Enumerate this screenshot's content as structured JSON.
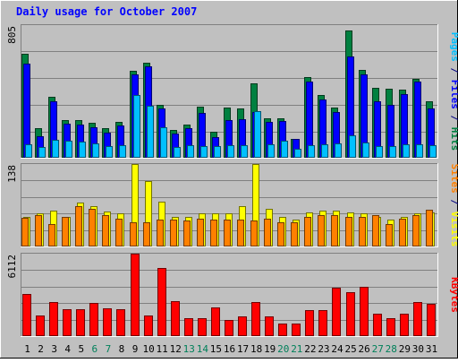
{
  "chart_data": {
    "type": "bar",
    "title": "Daily usage for October 2007",
    "categories": [
      "1",
      "2",
      "3",
      "4",
      "5",
      "6",
      "7",
      "8",
      "9",
      "10",
      "11",
      "12",
      "13",
      "14",
      "15",
      "16",
      "17",
      "18",
      "19",
      "20",
      "21",
      "22",
      "23",
      "24",
      "25",
      "26",
      "27",
      "28",
      "29",
      "30",
      "31"
    ],
    "weekend_days": [
      "6",
      "7",
      "13",
      "14",
      "20",
      "21",
      "27",
      "28"
    ],
    "panels": [
      {
        "id": "hits-files-pages",
        "max_label": "805",
        "ylim": [
          0,
          805
        ],
        "axis_label_parts": [
          {
            "text": "Pages",
            "color": "#00c0ff"
          },
          {
            "text": " / ",
            "color": "#000080"
          },
          {
            "text": "Files",
            "color": "#0000ff"
          },
          {
            "text": " / ",
            "color": "#000080"
          },
          {
            "text": "Hits",
            "color": "#008040"
          }
        ],
        "series": [
          {
            "name": "Hits",
            "color": "#008040",
            "values": [
              630,
              180,
              370,
              230,
              230,
              210,
              180,
              215,
              525,
              575,
              320,
              170,
              200,
              310,
              160,
              305,
              300,
              450,
              240,
              240,
              115,
              490,
              380,
              305,
              775,
              535,
              425,
              420,
              415,
              480,
              340
            ]
          },
          {
            "name": "Files",
            "color": "#0000ff",
            "values": [
              570,
              130,
              345,
              205,
              200,
              185,
              150,
              195,
              505,
              555,
              300,
              145,
              180,
              270,
              125,
              230,
              235,
              280,
              220,
              225,
              115,
              465,
              355,
              275,
              615,
              505,
              345,
              320,
              385,
              460,
              300
            ]
          },
          {
            "name": "Pages",
            "color": "#00c0ff",
            "values": [
              80,
              65,
              110,
              105,
              100,
              85,
              70,
              75,
              380,
              315,
              185,
              65,
              75,
              70,
              70,
              75,
              75,
              285,
              80,
              105,
              55,
              75,
              80,
              85,
              135,
              90,
              70,
              70,
              80,
              80,
              75
            ]
          }
        ]
      },
      {
        "id": "visits-sites",
        "max_label": "138",
        "ylim": [
          0,
          138
        ],
        "axis_label_parts": [
          {
            "text": "Sites",
            "color": "#ff8000"
          },
          {
            "text": " / ",
            "color": "#000080"
          },
          {
            "text": "Visits",
            "color": "#ffff00"
          }
        ],
        "series": [
          {
            "name": "Visits",
            "color": "#ffff00",
            "values": [
              50,
              55,
              60,
              50,
              73,
              68,
              58,
              55,
              138,
              110,
              75,
              50,
              50,
              55,
              55,
              55,
              67,
              138,
              63,
              50,
              45,
              57,
              60,
              60,
              57,
              55,
              50,
              45,
              50,
              55,
              57
            ]
          },
          {
            "name": "Sites",
            "color": "#ff8000",
            "values": [
              48,
              52,
              37,
              50,
              68,
              63,
              52,
              47,
              40,
              40,
              45,
              45,
              43,
              47,
              45,
              45,
              45,
              43,
              47,
              40,
              40,
              50,
              52,
              52,
              50,
              50,
              52,
              37,
              47,
              52,
              62
            ]
          }
        ]
      },
      {
        "id": "kbytes",
        "max_label": "6112",
        "ylim": [
          0,
          6112
        ],
        "axis_label_parts": [
          {
            "text": "KBytes",
            "color": "#ff0000"
          }
        ],
        "series": [
          {
            "name": "KBytes",
            "color": "#ff0000",
            "values": [
              3150,
              1550,
              2550,
              2000,
              2000,
              2430,
              2080,
              2000,
              6112,
              1550,
              5080,
              2600,
              1350,
              1350,
              2150,
              1200,
              1450,
              2500,
              1450,
              900,
              950,
              1950,
              1950,
              3600,
              3230,
              3650,
              1650,
              1350,
              1650,
              2500,
              2370
            ]
          }
        ]
      }
    ]
  }
}
